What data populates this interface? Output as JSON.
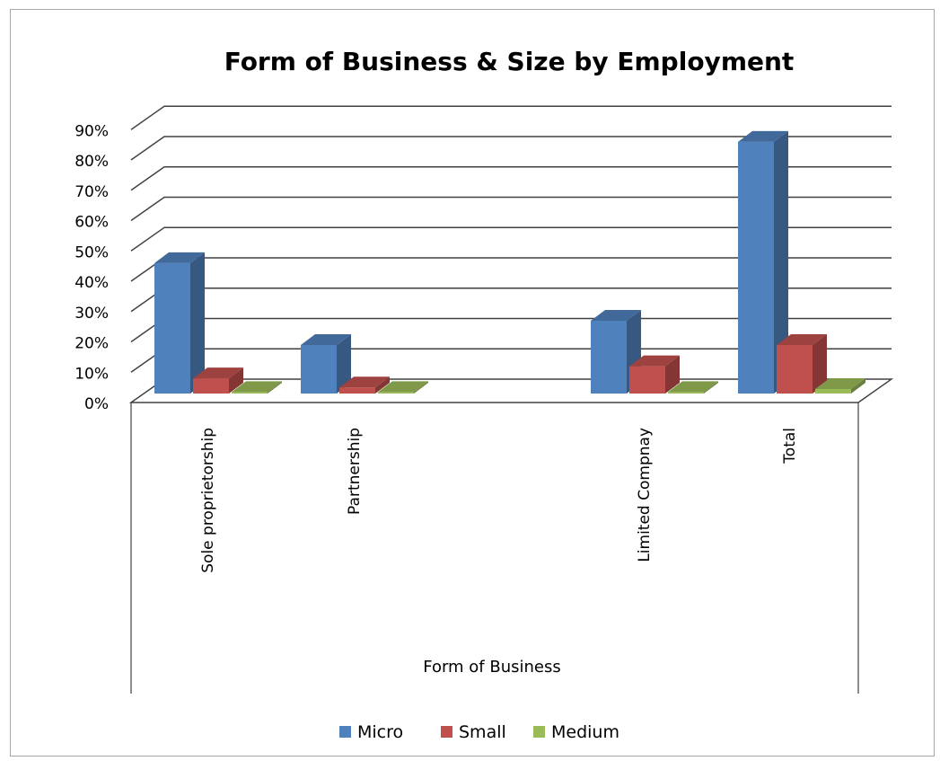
{
  "chart_data": {
    "type": "bar",
    "style": "3d-clustered-column",
    "title": "Form of Business & Size by Employment",
    "xlabel": "Form of Business",
    "ylabel": "",
    "categories": [
      "Sole proprietorship",
      "Partnership",
      "",
      "Limited Compnay",
      "Total"
    ],
    "series": [
      {
        "name": "Micro",
        "color": "#4f81bd",
        "values": [
          43,
          16,
          0,
          24,
          83
        ]
      },
      {
        "name": "Small",
        "color": "#c0504d",
        "values": [
          5,
          2,
          0,
          9,
          16
        ]
      },
      {
        "name": "Medium",
        "color": "#9bbb59",
        "values": [
          0.5,
          0.5,
          0,
          0.5,
          1.5
        ]
      }
    ],
    "yticks": [
      "0%",
      "10%",
      "20%",
      "30%",
      "40%",
      "50%",
      "60%",
      "70%",
      "80%",
      "90%"
    ],
    "ylim": [
      0,
      90
    ],
    "grid": true,
    "legend_position": "bottom"
  }
}
